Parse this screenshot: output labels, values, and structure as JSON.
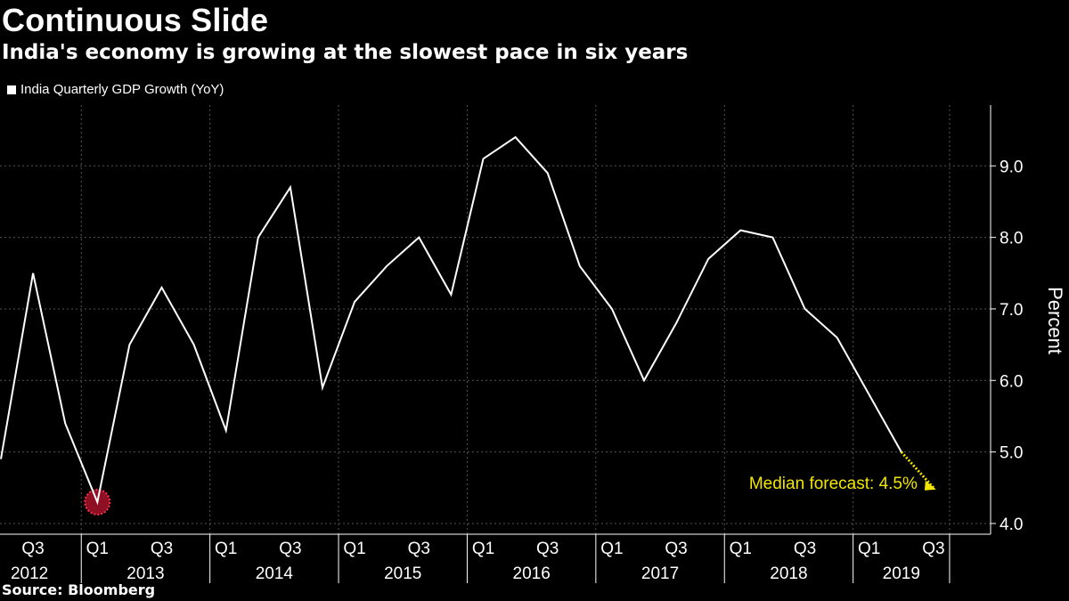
{
  "header": {
    "title": "Continuous Slide",
    "subtitle": "India's economy is growing at the slowest pace in six years"
  },
  "legend": {
    "label": "India Quarterly GDP Growth (YoY)"
  },
  "footer": {
    "source": "Source: Bloomberg"
  },
  "colors": {
    "background": "#000000",
    "line": "#ffffff",
    "forecast": "#f2e600",
    "lowlight": "#c0152f",
    "grid": "#555555"
  },
  "chart_data": {
    "type": "line",
    "title": "Continuous Slide",
    "subtitle": "India's economy is growing at the slowest pace in six years",
    "ylabel": "Percent",
    "ylim": [
      3.85,
      9.85
    ],
    "yticks": [
      "4.0",
      "5.0",
      "6.0",
      "7.0",
      "8.0",
      "9.0"
    ],
    "ytick_values": [
      4,
      5,
      6,
      7,
      8,
      9
    ],
    "grid": true,
    "legend_position": "top-left",
    "x_quarters": [
      "2012 Q2",
      "2012 Q3",
      "2012 Q4",
      "2013 Q1",
      "2013 Q2",
      "2013 Q3",
      "2013 Q4",
      "2014 Q1",
      "2014 Q2",
      "2014 Q3",
      "2014 Q4",
      "2015 Q1",
      "2015 Q2",
      "2015 Q3",
      "2015 Q4",
      "2016 Q1",
      "2016 Q2",
      "2016 Q3",
      "2016 Q4",
      "2017 Q1",
      "2017 Q2",
      "2017 Q3",
      "2017 Q4",
      "2018 Q1",
      "2018 Q2",
      "2018 Q3",
      "2018 Q4",
      "2019 Q1",
      "2019 Q2",
      "2019 Q3"
    ],
    "series": [
      {
        "name": "India Quarterly GDP Growth (YoY)",
        "values": [
          4.9,
          7.5,
          5.4,
          4.3,
          6.5,
          7.3,
          6.5,
          5.3,
          8.0,
          8.7,
          5.9,
          7.1,
          7.6,
          8.0,
          7.2,
          9.1,
          9.4,
          8.9,
          7.6,
          7.0,
          6.0,
          6.8,
          7.7,
          8.1,
          8.0,
          7.0,
          6.6,
          5.8,
          5.0,
          null
        ]
      }
    ],
    "forecast": {
      "from_quarter": "2019 Q2",
      "to_quarter": "2019 Q3",
      "from_value": 5.0,
      "value": 4.5,
      "label": "Median forecast: 4.5%"
    },
    "highlight": {
      "quarter": "2013 Q1",
      "value": 4.3
    },
    "x_tick_labels": [
      {
        "quarter": "2012 Q3",
        "label": "Q3"
      },
      {
        "quarter": "2013 Q1",
        "label": "Q1"
      },
      {
        "quarter": "2013 Q3",
        "label": "Q3"
      },
      {
        "quarter": "2014 Q1",
        "label": "Q1"
      },
      {
        "quarter": "2014 Q3",
        "label": "Q3"
      },
      {
        "quarter": "2015 Q1",
        "label": "Q1"
      },
      {
        "quarter": "2015 Q3",
        "label": "Q3"
      },
      {
        "quarter": "2016 Q1",
        "label": "Q1"
      },
      {
        "quarter": "2016 Q3",
        "label": "Q3"
      },
      {
        "quarter": "2017 Q1",
        "label": "Q1"
      },
      {
        "quarter": "2017 Q3",
        "label": "Q3"
      },
      {
        "quarter": "2018 Q1",
        "label": "Q1"
      },
      {
        "quarter": "2018 Q3",
        "label": "Q3"
      },
      {
        "quarter": "2019 Q1",
        "label": "Q1"
      },
      {
        "quarter": "2019 Q3",
        "label": "Q3"
      }
    ],
    "year_labels": [
      "2012",
      "2013",
      "2014",
      "2015",
      "2016",
      "2017",
      "2018",
      "2019"
    ]
  }
}
